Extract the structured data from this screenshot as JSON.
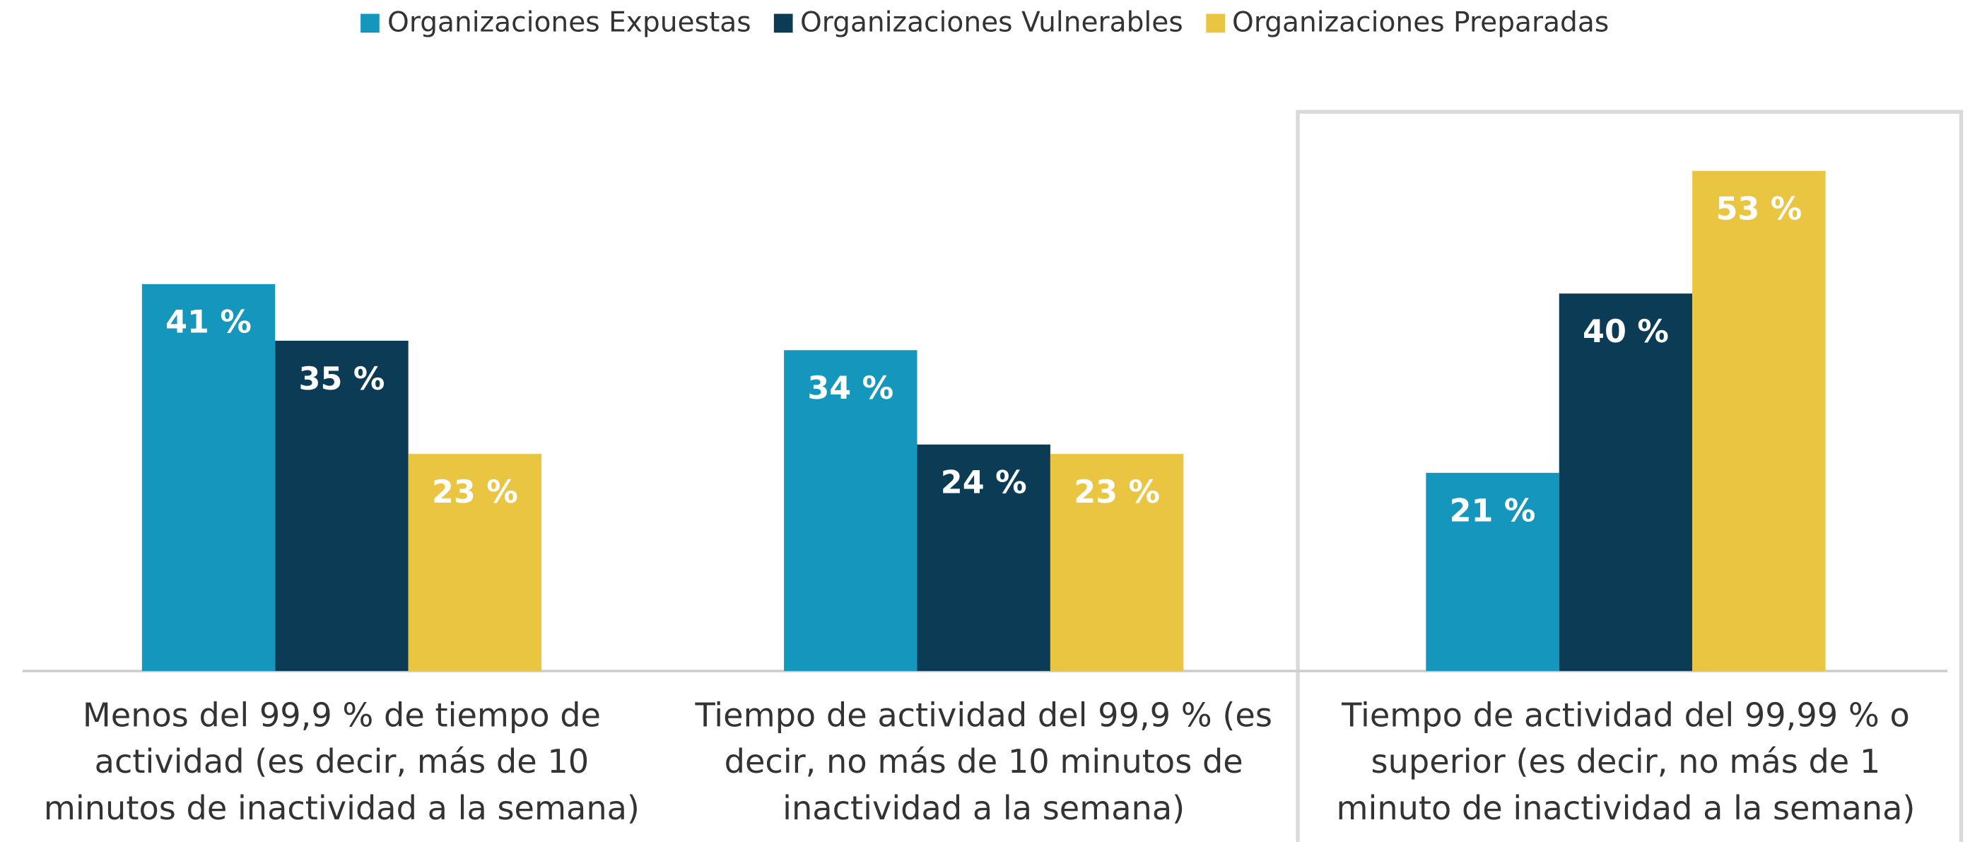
{
  "chart_data": {
    "type": "bar",
    "categories": [
      "Menos del 99,9 % de tiempo de actividad (es decir, más de 10 minutos de inactividad a la semana)",
      "Tiempo de actividad del 99,9 % (es decir, no más de 10 minutos de inactividad a la semana)",
      "Tiempo de actividad del 99,99 % o superior (es decir, no más de 1 minuto de inactividad a la semana)"
    ],
    "series": [
      {
        "name": "Organizaciones Expuestas",
        "color": "#1596bd",
        "values": [
          41,
          34,
          21
        ],
        "value_labels": [
          "41 %",
          "34 %",
          "21 %"
        ]
      },
      {
        "name": "Organizaciones Vulnerables",
        "color": "#0b3b55",
        "values": [
          35,
          24,
          40
        ],
        "value_labels": [
          "35 %",
          "24 %",
          "40 %"
        ]
      },
      {
        "name": "Organizaciones Preparadas",
        "color": "#eac541",
        "values": [
          23,
          23,
          53
        ],
        "value_labels": [
          "23 %",
          "23 %",
          "53 %"
        ]
      }
    ],
    "legend": "top"
  }
}
